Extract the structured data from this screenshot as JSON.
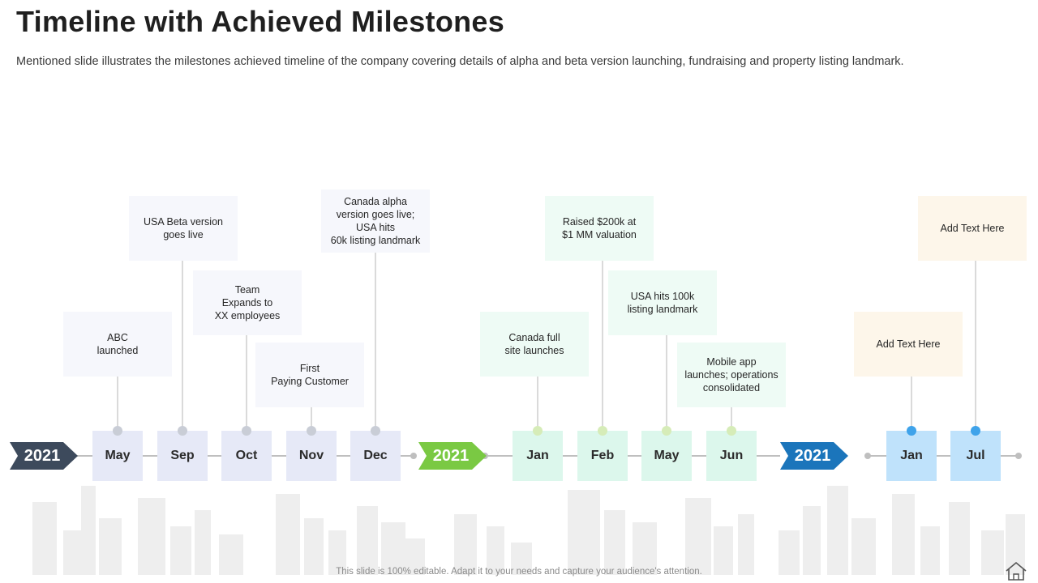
{
  "header": {
    "title": "Timeline with Achieved Milestones",
    "subtitle": "Mentioned slide illustrates the milestones achieved timeline of the company covering details of alpha and beta version launching, fundraising and property listing landmark."
  },
  "footer": {
    "text": "This slide is 100% editable. Adapt it to your needs and capture your audience's attention."
  },
  "colors": {
    "group1_arrow": "#3d4a5c",
    "group1_box": "#e6e9f7",
    "group1_note": "#f6f7fc",
    "group1_dot": "#c9cdd6",
    "group2_arrow": "#7ac943",
    "group2_box": "#dcf7ec",
    "group2_note": "#eefbf5",
    "group2_dot": "#d6ecb8",
    "group3_arrow": "#1b75bb",
    "group3_box": "#bfe2fb",
    "group3_note": "#fdf6ea",
    "group3_dot": "#3fa3ea",
    "axis": "#bfbfbf",
    "skyline": "#eeeeee"
  },
  "timeline": [
    {
      "year": "2021",
      "group": 1,
      "milestones": [
        {
          "month": "May",
          "note": "ABC\nlaunched",
          "level": "low"
        },
        {
          "month": "Sep",
          "note": "USA Beta version\ngoes live",
          "level": "high"
        },
        {
          "month": "Oct",
          "note": "Team\nExpands to\nXX  employees",
          "level": "mid"
        },
        {
          "month": "Nov",
          "note": "First\nPaying Customer",
          "level": "lower"
        },
        {
          "month": "Dec",
          "note": "Canada  alpha\nversion goes live;\nUSA hits\n60k listing landmark",
          "level": "top"
        }
      ]
    },
    {
      "year": "2021",
      "group": 2,
      "milestones": [
        {
          "month": "Jan",
          "note": "Canada  full\nsite launches",
          "level": "low"
        },
        {
          "month": "Feb",
          "note": "Raised $200k at\n$1 MM valuation",
          "level": "high"
        },
        {
          "month": "May",
          "note": "USA hits 100k\nlisting landmark",
          "level": "mid"
        },
        {
          "month": "Jun",
          "note": "Mobile app\nlaunches; operations\nconsolidated",
          "level": "lower"
        }
      ]
    },
    {
      "year": "2021",
      "group": 3,
      "milestones": [
        {
          "month": "Jan",
          "note": "Add Text Here",
          "level": "low"
        },
        {
          "month": "Jul",
          "note": "Add Text Here",
          "level": "high"
        }
      ]
    }
  ]
}
